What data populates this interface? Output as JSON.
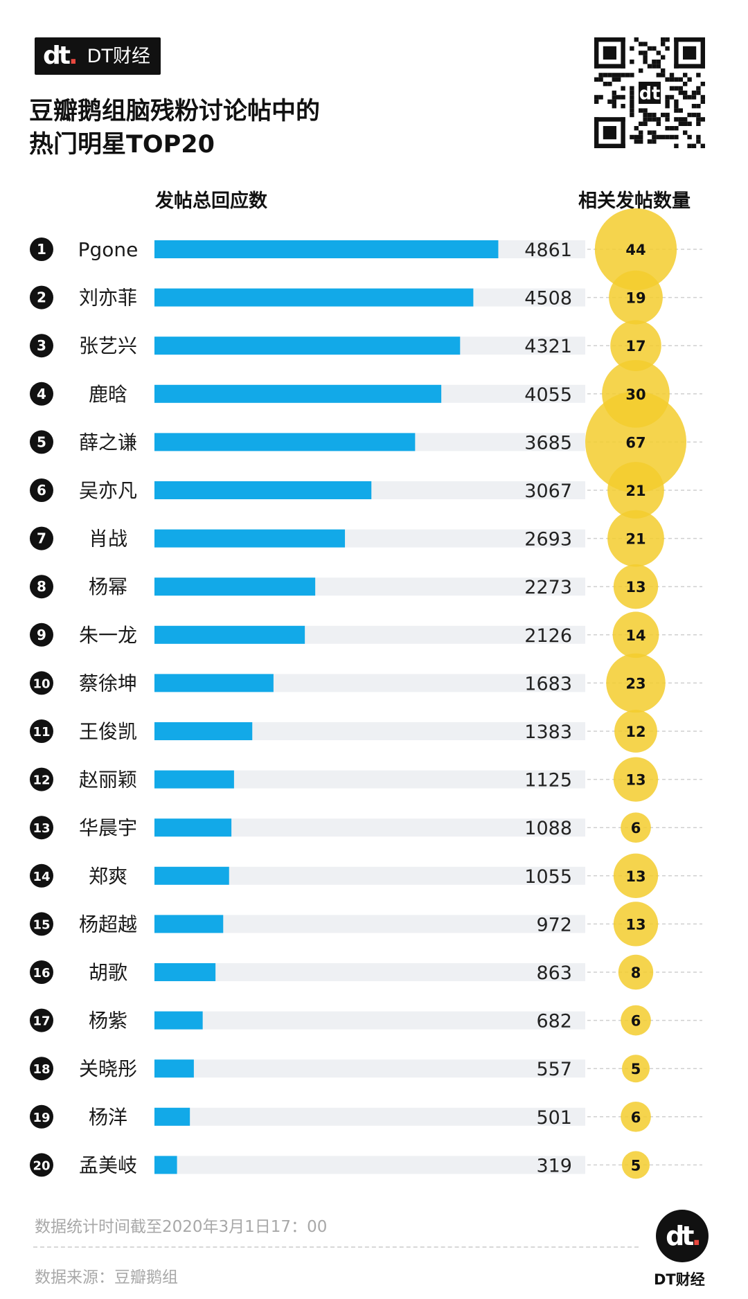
{
  "brand": {
    "mark": "dt.",
    "name": "DT财经"
  },
  "title_lines": [
    "豆瓣鹅组脑残粉讨论帖中的",
    "热门明星TOP20"
  ],
  "chart_data": {
    "type": "bar",
    "title": "豆瓣鹅组脑残粉讨论帖中的热门明星TOP20",
    "xlabel": "发帖总回应数",
    "size_label": "相关发帖数量",
    "xlim": [
      0,
      6100
    ],
    "ranks": [
      "1",
      "2",
      "3",
      "4",
      "5",
      "6",
      "7",
      "8",
      "9",
      "10",
      "11",
      "12",
      "13",
      "14",
      "15",
      "16",
      "17",
      "18",
      "19",
      "20"
    ],
    "categories": [
      "Pgone",
      "刘亦菲",
      "张艺兴",
      "鹿晗",
      "薛之谦",
      "吴亦凡",
      "肖战",
      "杨幂",
      "朱一龙",
      "蔡徐坤",
      "王俊凯",
      "赵丽颖",
      "华晨宇",
      "郑爽",
      "杨超越",
      "胡歌",
      "杨紫",
      "关晓彤",
      "杨洋",
      "孟美岐"
    ],
    "series": [
      {
        "name": "发帖总回应数",
        "color": "#12a9e8",
        "values": [
          4861,
          4508,
          4321,
          4055,
          3685,
          3067,
          2693,
          2273,
          2126,
          1683,
          1383,
          1125,
          1088,
          1055,
          972,
          863,
          682,
          557,
          501,
          319
        ]
      },
      {
        "name": "相关发帖数量",
        "color": "#f3cc2e",
        "values": [
          44,
          19,
          17,
          30,
          67,
          21,
          21,
          13,
          14,
          23,
          12,
          13,
          6,
          13,
          13,
          8,
          6,
          5,
          6,
          5
        ]
      }
    ]
  },
  "colors": {
    "bar": "#12a9e8",
    "track": "#eef0f3",
    "bubble": "#f3cc2e",
    "rank_badge": "#111111"
  },
  "footer": {
    "note": "数据统计时间截至2020年3月1日17：00",
    "source": "数据来源：豆瓣鹅组",
    "logo_text": "DT财经"
  }
}
